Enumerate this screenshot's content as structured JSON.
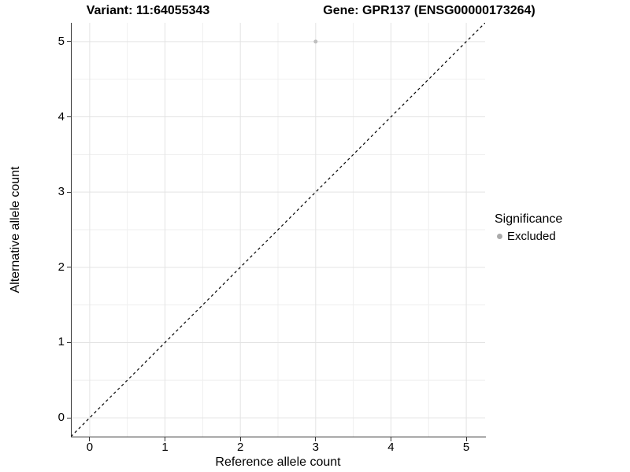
{
  "titles": {
    "variant": "Variant: 11:64055343",
    "gene": "Gene: GPR137 (ENSG00000173264)"
  },
  "chart_data": {
    "type": "scatter",
    "title_left": "Variant: 11:64055343",
    "title_right": "Gene: GPR137 (ENSG00000173264)",
    "xlabel": "Reference allele count",
    "ylabel": "Alternative allele count",
    "xlim": [
      -0.25,
      5.25
    ],
    "ylim": [
      -0.25,
      5.25
    ],
    "x_ticks": [
      0,
      1,
      2,
      3,
      4,
      5
    ],
    "y_ticks": [
      0,
      1,
      2,
      3,
      4,
      5
    ],
    "x_tick_labels": [
      "0",
      "1",
      "2",
      "3",
      "4",
      "5"
    ],
    "y_tick_labels": [
      "0",
      "1",
      "2",
      "3",
      "4",
      "5"
    ],
    "minor_ticks": [
      0.5,
      1.5,
      2.5,
      3.5,
      4.5
    ],
    "grid": true,
    "identity_line": {
      "style": "dashed",
      "color": "#000000",
      "from": [
        -0.25,
        -0.25
      ],
      "to": [
        5.25,
        5.25
      ]
    },
    "series": [
      {
        "name": "Excluded",
        "color": "#bfbfbf",
        "points": [
          [
            3,
            5
          ]
        ]
      }
    ],
    "legend": {
      "title": "Significance",
      "position": "right",
      "items": [
        {
          "label": "Excluded",
          "color": "#ababab"
        }
      ]
    }
  },
  "colors": {
    "background": "#ffffff",
    "grid_major": "#e3e3e3",
    "grid_minor": "#efefef",
    "axis_line": "#333333",
    "text": "#000000"
  }
}
